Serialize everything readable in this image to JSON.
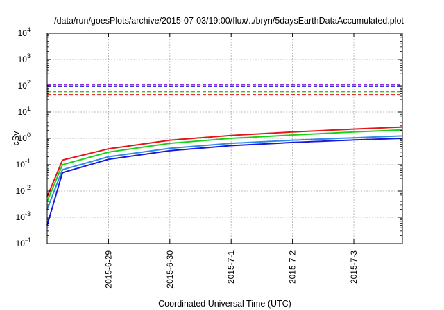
{
  "chart_data": {
    "type": "line",
    "title": "/data/run/goesPlots/archive/2015-07-03/19:00/flux/../bryn/5daysEarthDataAccumulated.plot",
    "xlabel": "Coordinated Universal Time (UTC)",
    "ylabel": "cSv",
    "y_scale": "log",
    "ylim_exponents": [
      -4,
      4
    ],
    "y_tick_labels": [
      {
        "base": "10",
        "exp": "-4"
      },
      {
        "base": "10",
        "exp": "-3"
      },
      {
        "base": "10",
        "exp": "-2"
      },
      {
        "base": "10",
        "exp": "-1"
      },
      {
        "base": "10",
        "exp": "0"
      },
      {
        "base": "10",
        "exp": "1"
      },
      {
        "base": "10",
        "exp": "2"
      },
      {
        "base": "10",
        "exp": "3"
      },
      {
        "base": "10",
        "exp": "4"
      }
    ],
    "xlim": [
      "2015-06-28",
      "2015-07-03 19:00"
    ],
    "x_ticks": [
      "2015-6-29",
      "2015-6-30",
      "2015-7-1",
      "2015-7-2",
      "2015-7-3"
    ],
    "grid": true,
    "legend": "none",
    "series": [
      {
        "color": "#e8141a",
        "style": "solid",
        "x": [
          "2015-06-28",
          "2015-06-28 06:00",
          "2015-06-29",
          "2015-06-30",
          "2015-07-01",
          "2015-07-02",
          "2015-07-03",
          "2015-07-03 19:00"
        ],
        "y": [
          0.006,
          0.15,
          0.4,
          0.85,
          1.3,
          1.75,
          2.25,
          2.7
        ]
      },
      {
        "color": "#18d418",
        "style": "solid",
        "x": [
          "2015-06-28",
          "2015-06-28 06:00",
          "2015-06-29",
          "2015-06-30",
          "2015-07-01",
          "2015-07-02",
          "2015-07-03",
          "2015-07-03 19:00"
        ],
        "y": [
          0.004,
          0.1,
          0.3,
          0.65,
          1.0,
          1.35,
          1.75,
          2.1
        ]
      },
      {
        "color": "#2f8ae8",
        "style": "solid",
        "x": [
          "2015-06-28",
          "2015-06-28 06:00",
          "2015-06-29",
          "2015-06-30",
          "2015-07-01",
          "2015-07-02",
          "2015-07-03",
          "2015-07-03 19:00"
        ],
        "y": [
          0.002,
          0.065,
          0.2,
          0.42,
          0.65,
          0.85,
          1.05,
          1.25
        ]
      },
      {
        "color": "#1a1ad8",
        "style": "solid",
        "x": [
          "2015-06-28",
          "2015-06-28 06:00",
          "2015-06-29",
          "2015-06-30",
          "2015-07-01",
          "2015-07-02",
          "2015-07-03",
          "2015-07-03 19:00"
        ],
        "y": [
          0.0005,
          0.05,
          0.16,
          0.34,
          0.53,
          0.7,
          0.87,
          1.0
        ]
      },
      {
        "color": "#9a2fd8",
        "style": "dashed",
        "x": [
          "2015-06-28",
          "2015-07-03 19:00"
        ],
        "y": [
          110,
          110
        ]
      },
      {
        "color": "#1a1ad8",
        "style": "dashed",
        "x": [
          "2015-06-28",
          "2015-07-03 19:00"
        ],
        "y": [
          95,
          95
        ]
      },
      {
        "color": "#18d418",
        "style": "dashed",
        "x": [
          "2015-06-28",
          "2015-07-03 19:00"
        ],
        "y": [
          60,
          60
        ]
      },
      {
        "color": "#e8141a",
        "style": "dashed",
        "x": [
          "2015-06-28",
          "2015-07-03 19:00"
        ],
        "y": [
          45,
          45
        ]
      }
    ]
  }
}
